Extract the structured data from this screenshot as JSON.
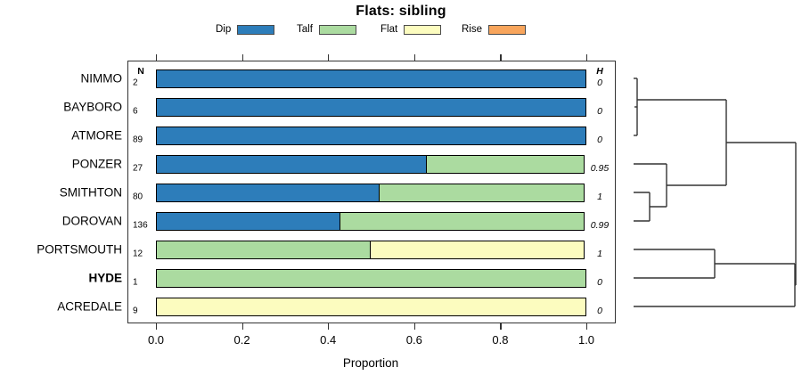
{
  "title": "Flats: sibling",
  "axis": {
    "xlabel": "Proportion",
    "tick_labels": [
      "0.0",
      "0.2",
      "0.4",
      "0.6",
      "0.8",
      "1.0"
    ]
  },
  "columns": {
    "n_header": "N",
    "h_header": "H"
  },
  "chart_data": {
    "type": "bar",
    "stacked": true,
    "orientation": "horizontal",
    "title": "Flats: sibling",
    "xlabel": "Proportion",
    "xlim": [
      0,
      1
    ],
    "xticks": [
      0,
      0.2,
      0.4,
      0.6,
      0.8,
      1.0
    ],
    "legend": [
      {
        "label": "Dip",
        "color": "#2D7DBA"
      },
      {
        "label": "Talf",
        "color": "#ABDBA0"
      },
      {
        "label": "Flat",
        "color": "#FCFCBF"
      },
      {
        "label": "Rise",
        "color": "#F8A55C"
      }
    ],
    "rows": [
      {
        "label": "NIMMO",
        "n": "2",
        "h": "0",
        "bold": false,
        "segments": [
          {
            "series": "Dip",
            "value": 1.0
          }
        ]
      },
      {
        "label": "BAYBORO",
        "n": "6",
        "h": "0",
        "bold": false,
        "segments": [
          {
            "series": "Dip",
            "value": 1.0
          }
        ]
      },
      {
        "label": "ATMORE",
        "n": "89",
        "h": "0",
        "bold": false,
        "segments": [
          {
            "series": "Dip",
            "value": 1.0
          }
        ]
      },
      {
        "label": "PONZER",
        "n": "27",
        "h": "0.95",
        "bold": false,
        "segments": [
          {
            "series": "Dip",
            "value": 0.63
          },
          {
            "series": "Talf",
            "value": 0.37
          }
        ]
      },
      {
        "label": "SMITHTON",
        "n": "80",
        "h": "1",
        "bold": false,
        "segments": [
          {
            "series": "Dip",
            "value": 0.52
          },
          {
            "series": "Talf",
            "value": 0.48
          }
        ]
      },
      {
        "label": "DOROVAN",
        "n": "136",
        "h": "0.99",
        "bold": false,
        "segments": [
          {
            "series": "Dip",
            "value": 0.43
          },
          {
            "series": "Talf",
            "value": 0.57
          }
        ]
      },
      {
        "label": "PORTSMOUTH",
        "n": "12",
        "h": "1",
        "bold": false,
        "segments": [
          {
            "series": "Talf",
            "value": 0.5
          },
          {
            "series": "Flat",
            "value": 0.5
          }
        ]
      },
      {
        "label": "HYDE",
        "n": "1",
        "h": "0",
        "bold": true,
        "segments": [
          {
            "series": "Talf",
            "value": 1.0
          }
        ]
      },
      {
        "label": "ACREDALE",
        "n": "9",
        "h": "0",
        "bold": false,
        "segments": [
          {
            "series": "Flat",
            "value": 1.0
          }
        ]
      }
    ],
    "dendrogram": {
      "description": "Right-side dendrogram over row order; clusters: ((NIMMO,BAYBORO,ATMORE),(PONZER,(SMITHTON,DOROVAN))) joined with ((PORTSMOUTH,HYDE),ACREDALE)",
      "segments": [
        [
          [
            11,
            28
          ],
          [
            15,
            28
          ]
        ],
        [
          [
            12,
            60
          ],
          [
            15,
            60
          ]
        ],
        [
          [
            11,
            92
          ],
          [
            15,
            92
          ]
        ],
        [
          [
            15,
            28
          ],
          [
            15,
            92
          ]
        ],
        [
          [
            15,
            52
          ],
          [
            115,
            52
          ]
        ],
        [
          [
            11,
            124
          ],
          [
            48,
            124
          ]
        ],
        [
          [
            11,
            156
          ],
          [
            29,
            156
          ]
        ],
        [
          [
            11,
            188
          ],
          [
            29,
            188
          ]
        ],
        [
          [
            29,
            156
          ],
          [
            29,
            188
          ]
        ],
        [
          [
            29,
            172
          ],
          [
            48,
            172
          ]
        ],
        [
          [
            48,
            124
          ],
          [
            48,
            172
          ]
        ],
        [
          [
            48,
            148
          ],
          [
            115,
            148
          ]
        ],
        [
          [
            115,
            52
          ],
          [
            115,
            148
          ]
        ],
        [
          [
            115,
            100
          ],
          [
            193,
            100
          ]
        ],
        [
          [
            11,
            220
          ],
          [
            102,
            220
          ]
        ],
        [
          [
            11,
            252
          ],
          [
            102,
            252
          ]
        ],
        [
          [
            102,
            220
          ],
          [
            102,
            252
          ]
        ],
        [
          [
            102,
            236
          ],
          [
            192,
            236
          ]
        ],
        [
          [
            11,
            284
          ],
          [
            192,
            284
          ]
        ],
        [
          [
            192,
            236
          ],
          [
            192,
            284
          ]
        ],
        [
          [
            192,
            260
          ],
          [
            193,
            260
          ]
        ],
        [
          [
            193,
            100
          ],
          [
            193,
            260
          ]
        ]
      ]
    }
  }
}
